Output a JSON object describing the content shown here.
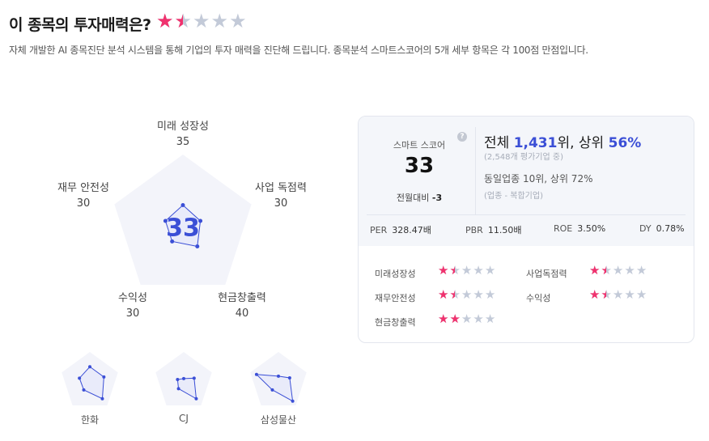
{
  "header": {
    "title": "이 종목의 투자매력은?",
    "rating": 1.5,
    "rating_max": 5,
    "description": "자체 개발한 AI 종목진단 분석 시스템을 통해 기업의 투자 매력을 진단해 드립니다. 종목분석 스마트스코어의 5개 세부 항목은 각 100점 만점입니다."
  },
  "radar": {
    "score": "33",
    "axes": [
      {
        "label": "미래 성장성",
        "value": 35
      },
      {
        "label": "사업 독점력",
        "value": 30
      },
      {
        "label": "현금창출력",
        "value": 40
      },
      {
        "label": "수익성",
        "value": 30
      },
      {
        "label": "재무 안전성",
        "value": 30
      }
    ],
    "color": "#3b4fd6",
    "bg": "#f3f4fa"
  },
  "peers": [
    {
      "name": "한화",
      "values": [
        50,
        50,
        72,
        35,
        37
      ]
    },
    {
      "name": "CJ",
      "values": [
        10,
        37,
        72,
        30,
        22
      ]
    },
    {
      "name": "삼성물산",
      "values": [
        18,
        40,
        82,
        35,
        78
      ]
    }
  ],
  "card": {
    "smart_score_label": "스마트 스코어",
    "smart_score": "33",
    "monthly_change_label": "전월대비",
    "monthly_change": "-3",
    "rank_prefix": "전체 ",
    "rank": "1,431",
    "rank_suffix": "위, 상위 ",
    "percentile": "56%",
    "rank_sub": "(2,548개 평가기업 중)",
    "peer_rank": "동일업종 10위, 상위 72%",
    "industry": "(업종 - 복합기업)",
    "metrics": [
      {
        "label": "PER",
        "value": "328.47배"
      },
      {
        "label": "PBR",
        "value": "11.50배"
      },
      {
        "label": "ROE",
        "value": "3.50%"
      },
      {
        "label": "DY",
        "value": "0.78%"
      }
    ],
    "ratings": [
      {
        "label": "미래성장성",
        "stars": 1.5
      },
      {
        "label": "사업독점력",
        "stars": 1.5
      },
      {
        "label": "재무안전성",
        "stars": 1.5
      },
      {
        "label": "수익성",
        "stars": 1.5
      },
      {
        "label": "현금창출력",
        "stars": 2
      }
    ]
  }
}
